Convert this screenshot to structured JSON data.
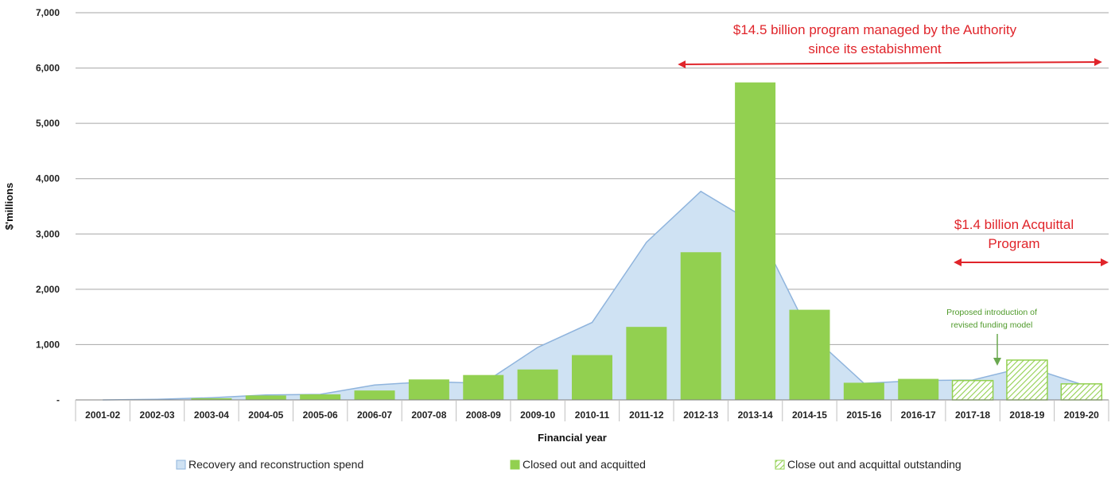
{
  "chart_data": {
    "type": "bar",
    "title": "",
    "xlabel": "Financial year",
    "ylabel": "$'millions",
    "ylim": [
      0,
      7000
    ],
    "yticks": [
      0,
      1000,
      2000,
      3000,
      4000,
      5000,
      6000,
      7000
    ],
    "ytick_labels": [
      "-",
      "1,000",
      "2,000",
      "3,000",
      "4,000",
      "5,000",
      "6,000",
      "7,000"
    ],
    "grid": "horizontal",
    "legend_position": "bottom",
    "categories": [
      "2001-02",
      "2002-03",
      "2003-04",
      "2004-05",
      "2005-06",
      "2006-07",
      "2007-08",
      "2008-09",
      "2009-10",
      "2010-11",
      "2011-12",
      "2012-13",
      "2013-14",
      "2014-15",
      "2015-16",
      "2016-17",
      "2017-18",
      "2018-19",
      "2019-20"
    ],
    "series": [
      {
        "name": "Recovery and reconstruction spend",
        "type": "area",
        "color": "#cfe2f3",
        "line_color": "#8fb4dd",
        "values": [
          0,
          10,
          40,
          90,
          100,
          270,
          330,
          300,
          950,
          1400,
          2850,
          3770,
          3180,
          1200,
          300,
          350,
          360,
          600,
          280
        ]
      },
      {
        "name": "Closed out and acquitted",
        "type": "bar",
        "color": "#92d050",
        "values": [
          0,
          0,
          30,
          80,
          100,
          170,
          370,
          450,
          550,
          810,
          1320,
          2670,
          5740,
          1630,
          310,
          380,
          null,
          null,
          null
        ]
      },
      {
        "name": "Close out and acquittal outstanding",
        "type": "bar",
        "pattern": "hatched",
        "color": "#92d050",
        "values": [
          null,
          null,
          null,
          null,
          null,
          null,
          null,
          null,
          null,
          null,
          null,
          null,
          null,
          null,
          null,
          null,
          350,
          720,
          290
        ]
      }
    ],
    "annotations": [
      {
        "lines": [
          "$14.5 billion program managed by the Authority",
          "since its estabishment"
        ],
        "color": "#e0242a",
        "span": [
          "2012-13",
          "2019-20"
        ]
      },
      {
        "lines": [
          "$1.4 billion Acquittal",
          "Program"
        ],
        "color": "#e0242a",
        "span": [
          "2017-18",
          "2019-20"
        ]
      },
      {
        "lines": [
          "Proposed introduction of",
          "revised funding model"
        ],
        "color": "#4f9a2a",
        "points_to": "2018-19"
      }
    ]
  }
}
